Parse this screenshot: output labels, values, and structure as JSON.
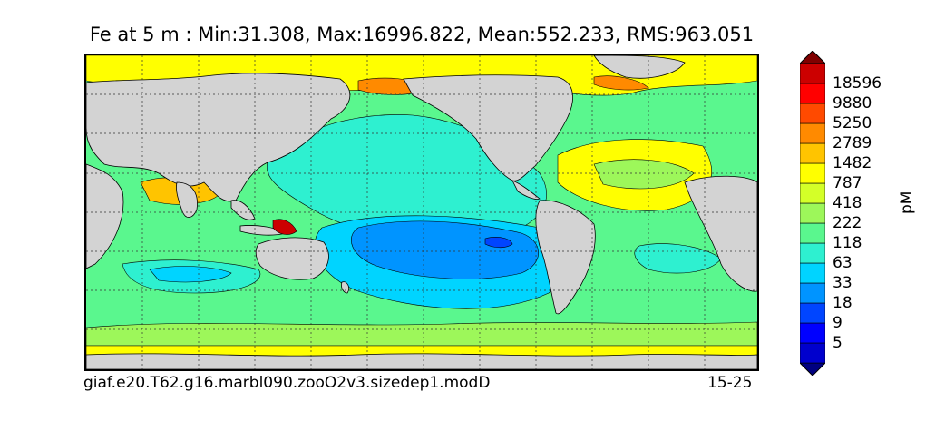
{
  "title": "Fe at 5 m : Min:31.308, Max:16996.822, Mean:552.233, RMS:963.051",
  "case_name": "giaf.e20.T62.g16.marbl090.zooO2v3.sizedep1.modD",
  "year_range": "15-25",
  "units": "pM",
  "colorbar": {
    "levels": [
      "18596",
      "9880",
      "5250",
      "2789",
      "1482",
      "787",
      "418",
      "222",
      "118",
      "63",
      "33",
      "18",
      "9",
      "5"
    ],
    "colors": [
      "#000080",
      "#0000cd",
      "#0000ff",
      "#0045ff",
      "#0094ff",
      "#00d4ff",
      "#2ef0d0",
      "#5af78e",
      "#9df75a",
      "#d4ff28",
      "#ffff00",
      "#ffc400",
      "#ff8a00",
      "#ff4a00",
      "#ff0000",
      "#cc0000",
      "#800000"
    ]
  },
  "map": {
    "field": "Fe",
    "depth": "5 m",
    "land_color": "#d3d3d3",
    "projection": "global lat-lon, Pacific-centered",
    "gridlines": "dotted"
  }
}
